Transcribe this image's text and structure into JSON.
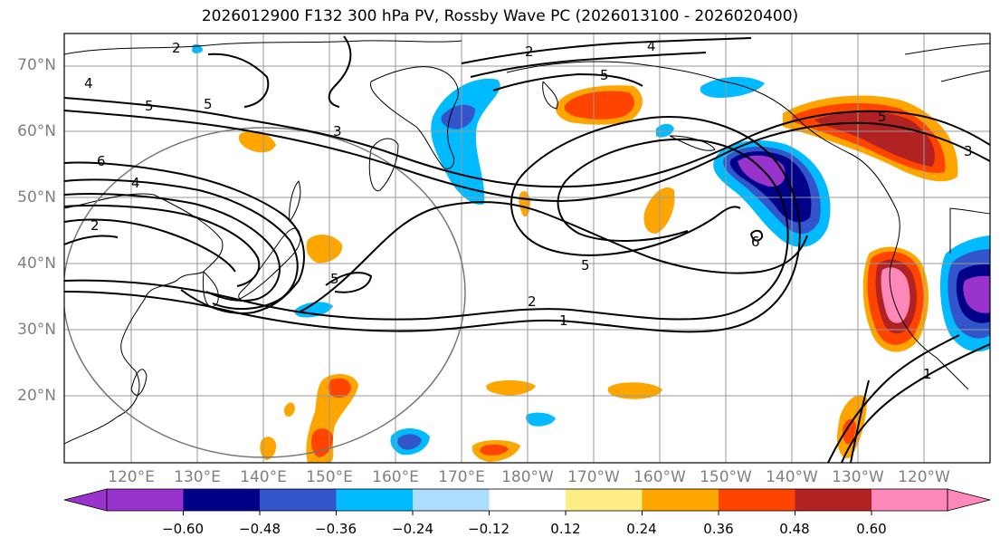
{
  "title": "2026012900 F132 300 hPa PV, Rossby Wave PC (2026013100 - 2026020400)",
  "lat_labels": [
    "70°N",
    "60°N",
    "50°N",
    "40°N",
    "30°N",
    "20°N"
  ],
  "lon_labels": [
    "120°E",
    "130°E",
    "140°E",
    "150°E",
    "160°E",
    "170°E",
    "180°W",
    "170°W",
    "160°W",
    "150°W",
    "140°W",
    "130°W",
    "120°W"
  ],
  "colorbar": {
    "colors": [
      "#9933cc",
      "#000088",
      "#3355cc",
      "#00bbff",
      "#aaddff",
      "#ffffff",
      "#ffee88",
      "#ffa500",
      "#ff4400",
      "#b22222",
      "#ff88bb"
    ],
    "ticks": [
      "−0.60",
      "−0.48",
      "−0.36",
      "−0.24",
      "−0.12",
      "0.12",
      "0.24",
      "0.36",
      "0.48",
      "0.60"
    ]
  },
  "contour_labels": [
    "2",
    "4",
    "5",
    "4",
    "2",
    "5",
    "6",
    "4",
    "2",
    "3",
    "5",
    "2",
    "1",
    "5",
    "6",
    "3",
    "1",
    "5",
    "5"
  ]
}
